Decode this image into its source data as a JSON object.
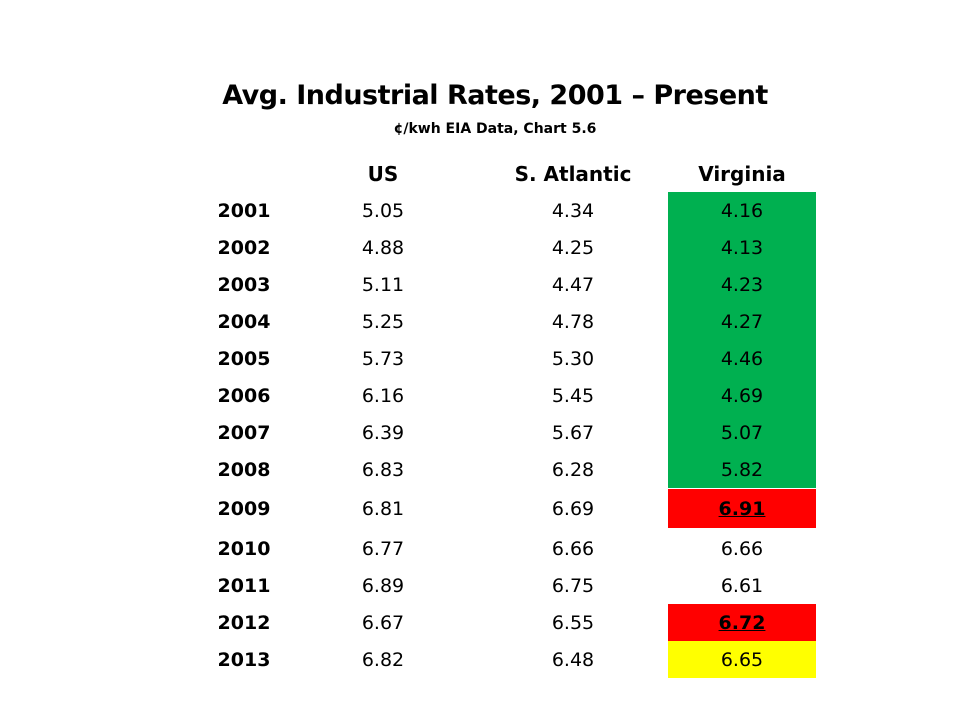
{
  "title": "Avg. Industrial Rates, 2001 – Present",
  "subtitle": "¢/kwh  EIA Data, Chart 5.6",
  "columns": {
    "year": "",
    "us": "US",
    "south_atlantic": "S. Atlantic",
    "virginia": "Virginia"
  },
  "colors": {
    "green": "#00b050",
    "red": "#ff0000",
    "yellow": "#ffff00"
  },
  "rows": [
    {
      "year": "2001",
      "us": "5.05",
      "sa": "4.34",
      "va": "4.16",
      "va_highlight": "green",
      "va_emphasis": false
    },
    {
      "year": "2002",
      "us": "4.88",
      "sa": "4.25",
      "va": "4.13",
      "va_highlight": "green",
      "va_emphasis": false
    },
    {
      "year": "2003",
      "us": "5.11",
      "sa": "4.47",
      "va": "4.23",
      "va_highlight": "green",
      "va_emphasis": false
    },
    {
      "year": "2004",
      "us": "5.25",
      "sa": "4.78",
      "va": "4.27",
      "va_highlight": "green",
      "va_emphasis": false
    },
    {
      "year": "2005",
      "us": "5.73",
      "sa": "5.30",
      "va": "4.46",
      "va_highlight": "green",
      "va_emphasis": false
    },
    {
      "year": "2006",
      "us": "6.16",
      "sa": "5.45",
      "va": "4.69",
      "va_highlight": "green",
      "va_emphasis": false
    },
    {
      "year": "2007",
      "us": "6.39",
      "sa": "5.67",
      "va": "5.07",
      "va_highlight": "green",
      "va_emphasis": false
    },
    {
      "year": "2008",
      "us": "6.83",
      "sa": "6.28",
      "va": "5.82",
      "va_highlight": "green",
      "va_emphasis": false
    },
    {
      "year": "2009",
      "us": "6.81",
      "sa": "6.69",
      "va": "6.91",
      "va_highlight": "red",
      "va_emphasis": true
    },
    {
      "year": "2010",
      "us": "6.77",
      "sa": "6.66",
      "va": "6.66",
      "va_highlight": "none",
      "va_emphasis": false
    },
    {
      "year": "2011",
      "us": "6.89",
      "sa": "6.75",
      "va": "6.61",
      "va_highlight": "none",
      "va_emphasis": false
    },
    {
      "year": "2012",
      "us": "6.67",
      "sa": "6.55",
      "va": "6.72",
      "va_highlight": "red",
      "va_emphasis": true
    },
    {
      "year": "2013",
      "us": "6.82",
      "sa": "6.48",
      "va": "6.65",
      "va_highlight": "yellow",
      "va_emphasis": false
    }
  ]
}
